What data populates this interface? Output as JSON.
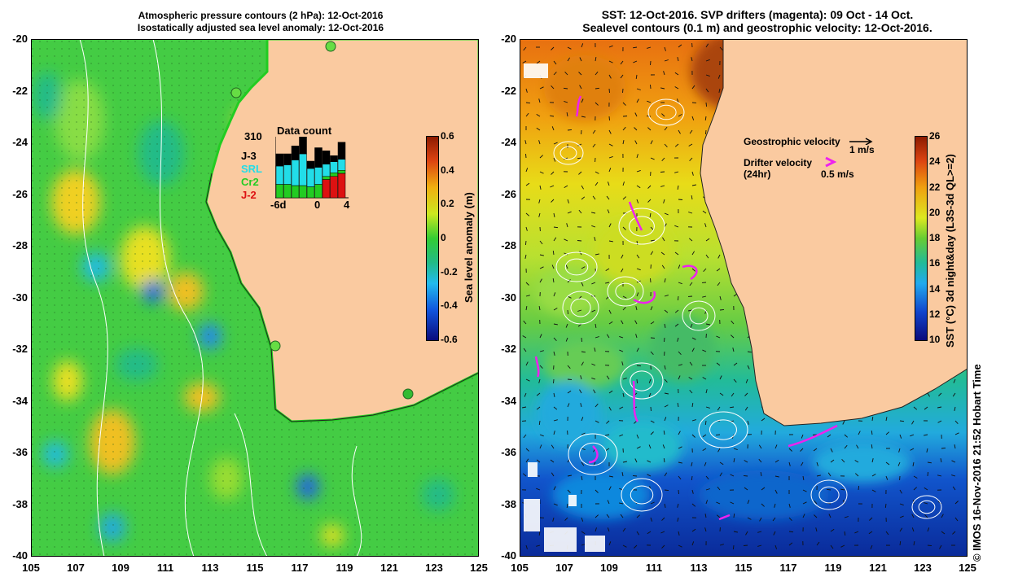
{
  "left_panel": {
    "title_line1": "Atmospheric pressure contours (2 hPa): 12-Oct-2016",
    "title_line2": "Isostatically adjusted sea level anomaly: 12-Oct-2016",
    "lat_ticks": [
      "-20",
      "-22",
      "-24",
      "-26",
      "-28",
      "-30",
      "-32",
      "-34",
      "-36",
      "-38",
      "-40"
    ],
    "lon_ticks": [
      "105",
      "107",
      "109",
      "111",
      "113",
      "115",
      "117",
      "119",
      "121",
      "123",
      "125"
    ],
    "colorbar": {
      "label": "Sea level anomaly (m)",
      "ticks": [
        "0.6",
        "0.4",
        "0.2",
        "0",
        "-0.2",
        "-0.4",
        "-0.6"
      ]
    },
    "data_count": {
      "title": "Data count",
      "max": "310",
      "legend": [
        {
          "label": "J-3",
          "color": "#000000"
        },
        {
          "label": "SRL",
          "color": "#22dde8"
        },
        {
          "label": "Cr2",
          "color": "#22cc22"
        },
        {
          "label": "J-2",
          "color": "#dd1111"
        }
      ],
      "axis_labels": [
        "-6d",
        "0",
        "4"
      ],
      "bars": [
        {
          "j2": 0,
          "cr2": 0.22,
          "srl": 0.3,
          "j3": 0.2
        },
        {
          "j2": 0,
          "cr2": 0.22,
          "srl": 0.32,
          "j3": 0.18
        },
        {
          "j2": 0,
          "cr2": 0.2,
          "srl": 0.42,
          "j3": 0.23
        },
        {
          "j2": 0,
          "cr2": 0.2,
          "srl": 0.52,
          "j3": 0.28
        },
        {
          "j2": 0,
          "cr2": 0.18,
          "srl": 0.3,
          "j3": 0.12
        },
        {
          "j2": 0,
          "cr2": 0.22,
          "srl": 0.28,
          "j3": 0.32
        },
        {
          "j2": 0.3,
          "cr2": 0.05,
          "srl": 0.2,
          "j3": 0.22
        },
        {
          "j2": 0.35,
          "cr2": 0.06,
          "srl": 0.18,
          "j3": 0.1
        },
        {
          "j2": 0.4,
          "cr2": 0.05,
          "srl": 0.18,
          "j3": 0.28
        }
      ]
    }
  },
  "right_panel": {
    "title_line1": "SST: 12-Oct-2016. SVP drifters (magenta): 09 Oct - 14 Oct.",
    "title_line2": "Sealevel contours (0.1 m) and geostrophic velocity: 12-Oct-2016.",
    "lat_ticks": [
      "-20",
      "-22",
      "-24",
      "-26",
      "-28",
      "-30",
      "-32",
      "-34",
      "-36",
      "-38",
      "-40"
    ],
    "lon_ticks": [
      "105",
      "107",
      "109",
      "111",
      "113",
      "115",
      "117",
      "119",
      "121",
      "123",
      "125"
    ],
    "colorbar": {
      "label": "SST (°C) 3d night&day (L3S-3d QL>=2)",
      "ticks": [
        "26",
        "24",
        "22",
        "20",
        "18",
        "16",
        "14",
        "12",
        "10"
      ]
    },
    "legend": {
      "geo_label": "Geostrophic velocity",
      "geo_scale": "1 m/s",
      "drifter_label": "Drifter velocity",
      "drifter_sub": "(24hr)",
      "drifter_scale": "0.5 m/s"
    }
  },
  "credit": "© IMOS 16-Nov-2016 21:52 Hobart Time",
  "colors": {
    "land": "#facaa0",
    "drifter": "#ee22ee"
  }
}
